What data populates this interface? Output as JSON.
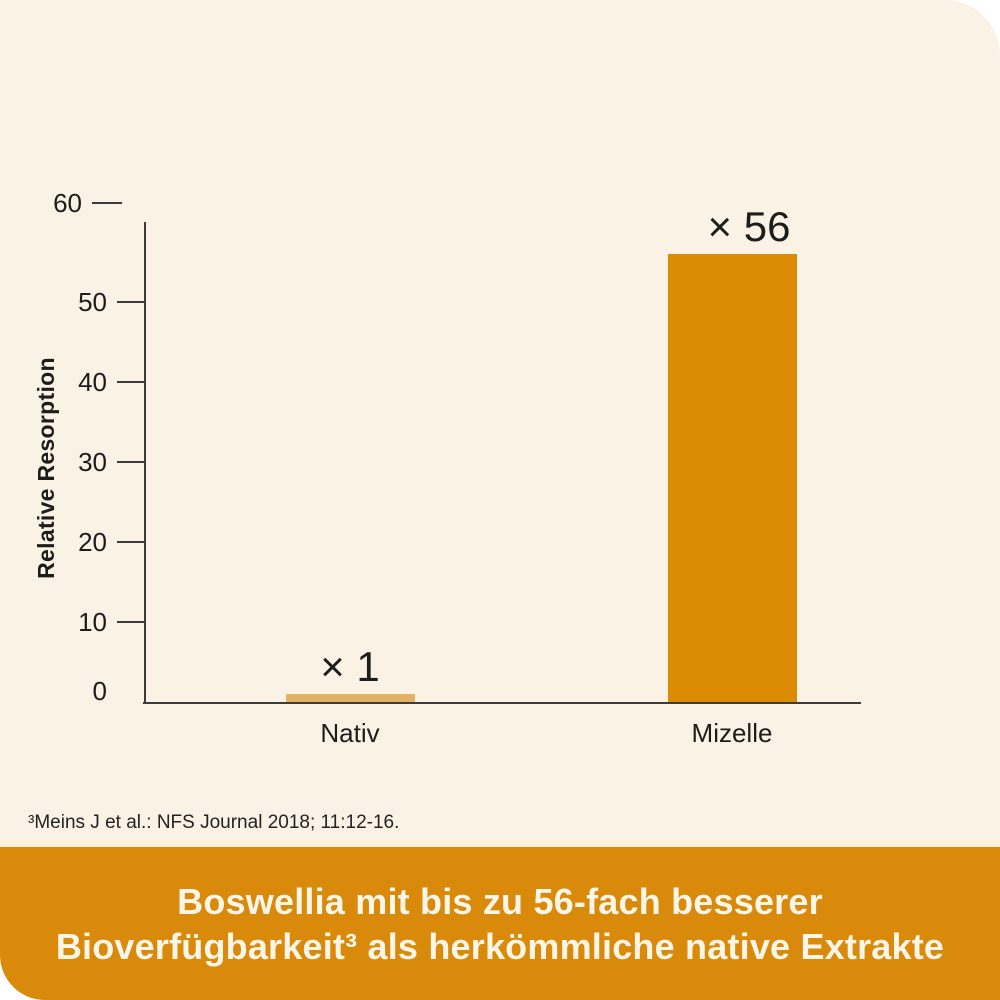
{
  "page": {
    "card_background": "#FAF2E4",
    "axis_color": "#3C3C3C",
    "text_color": "#1D1D1B"
  },
  "chart_data": {
    "type": "bar",
    "title": "",
    "xlabel": "",
    "ylabel": "Relative Resorption",
    "categories": [
      "Nativ",
      "Mizelle"
    ],
    "values": [
      1,
      56
    ],
    "bar_labels": [
      "× 1",
      "× 56"
    ],
    "bar_colors": [
      "#E2B266",
      "#DB8B04"
    ],
    "yticks": [
      0,
      10,
      20,
      30,
      40,
      50,
      60
    ],
    "ylim": [
      0,
      60
    ],
    "grid": false,
    "legend": false
  },
  "footnote": "³Meins J et al.: NFS Journal 2018; 11:12-16.",
  "banner": {
    "background": "#DA8A0B",
    "text_color": "#FBF6E8",
    "line1": "Boswellia mit bis zu 56-fach besserer",
    "line2": "Bioverfügbarkeit³ als herkömmliche native Extrakte"
  }
}
